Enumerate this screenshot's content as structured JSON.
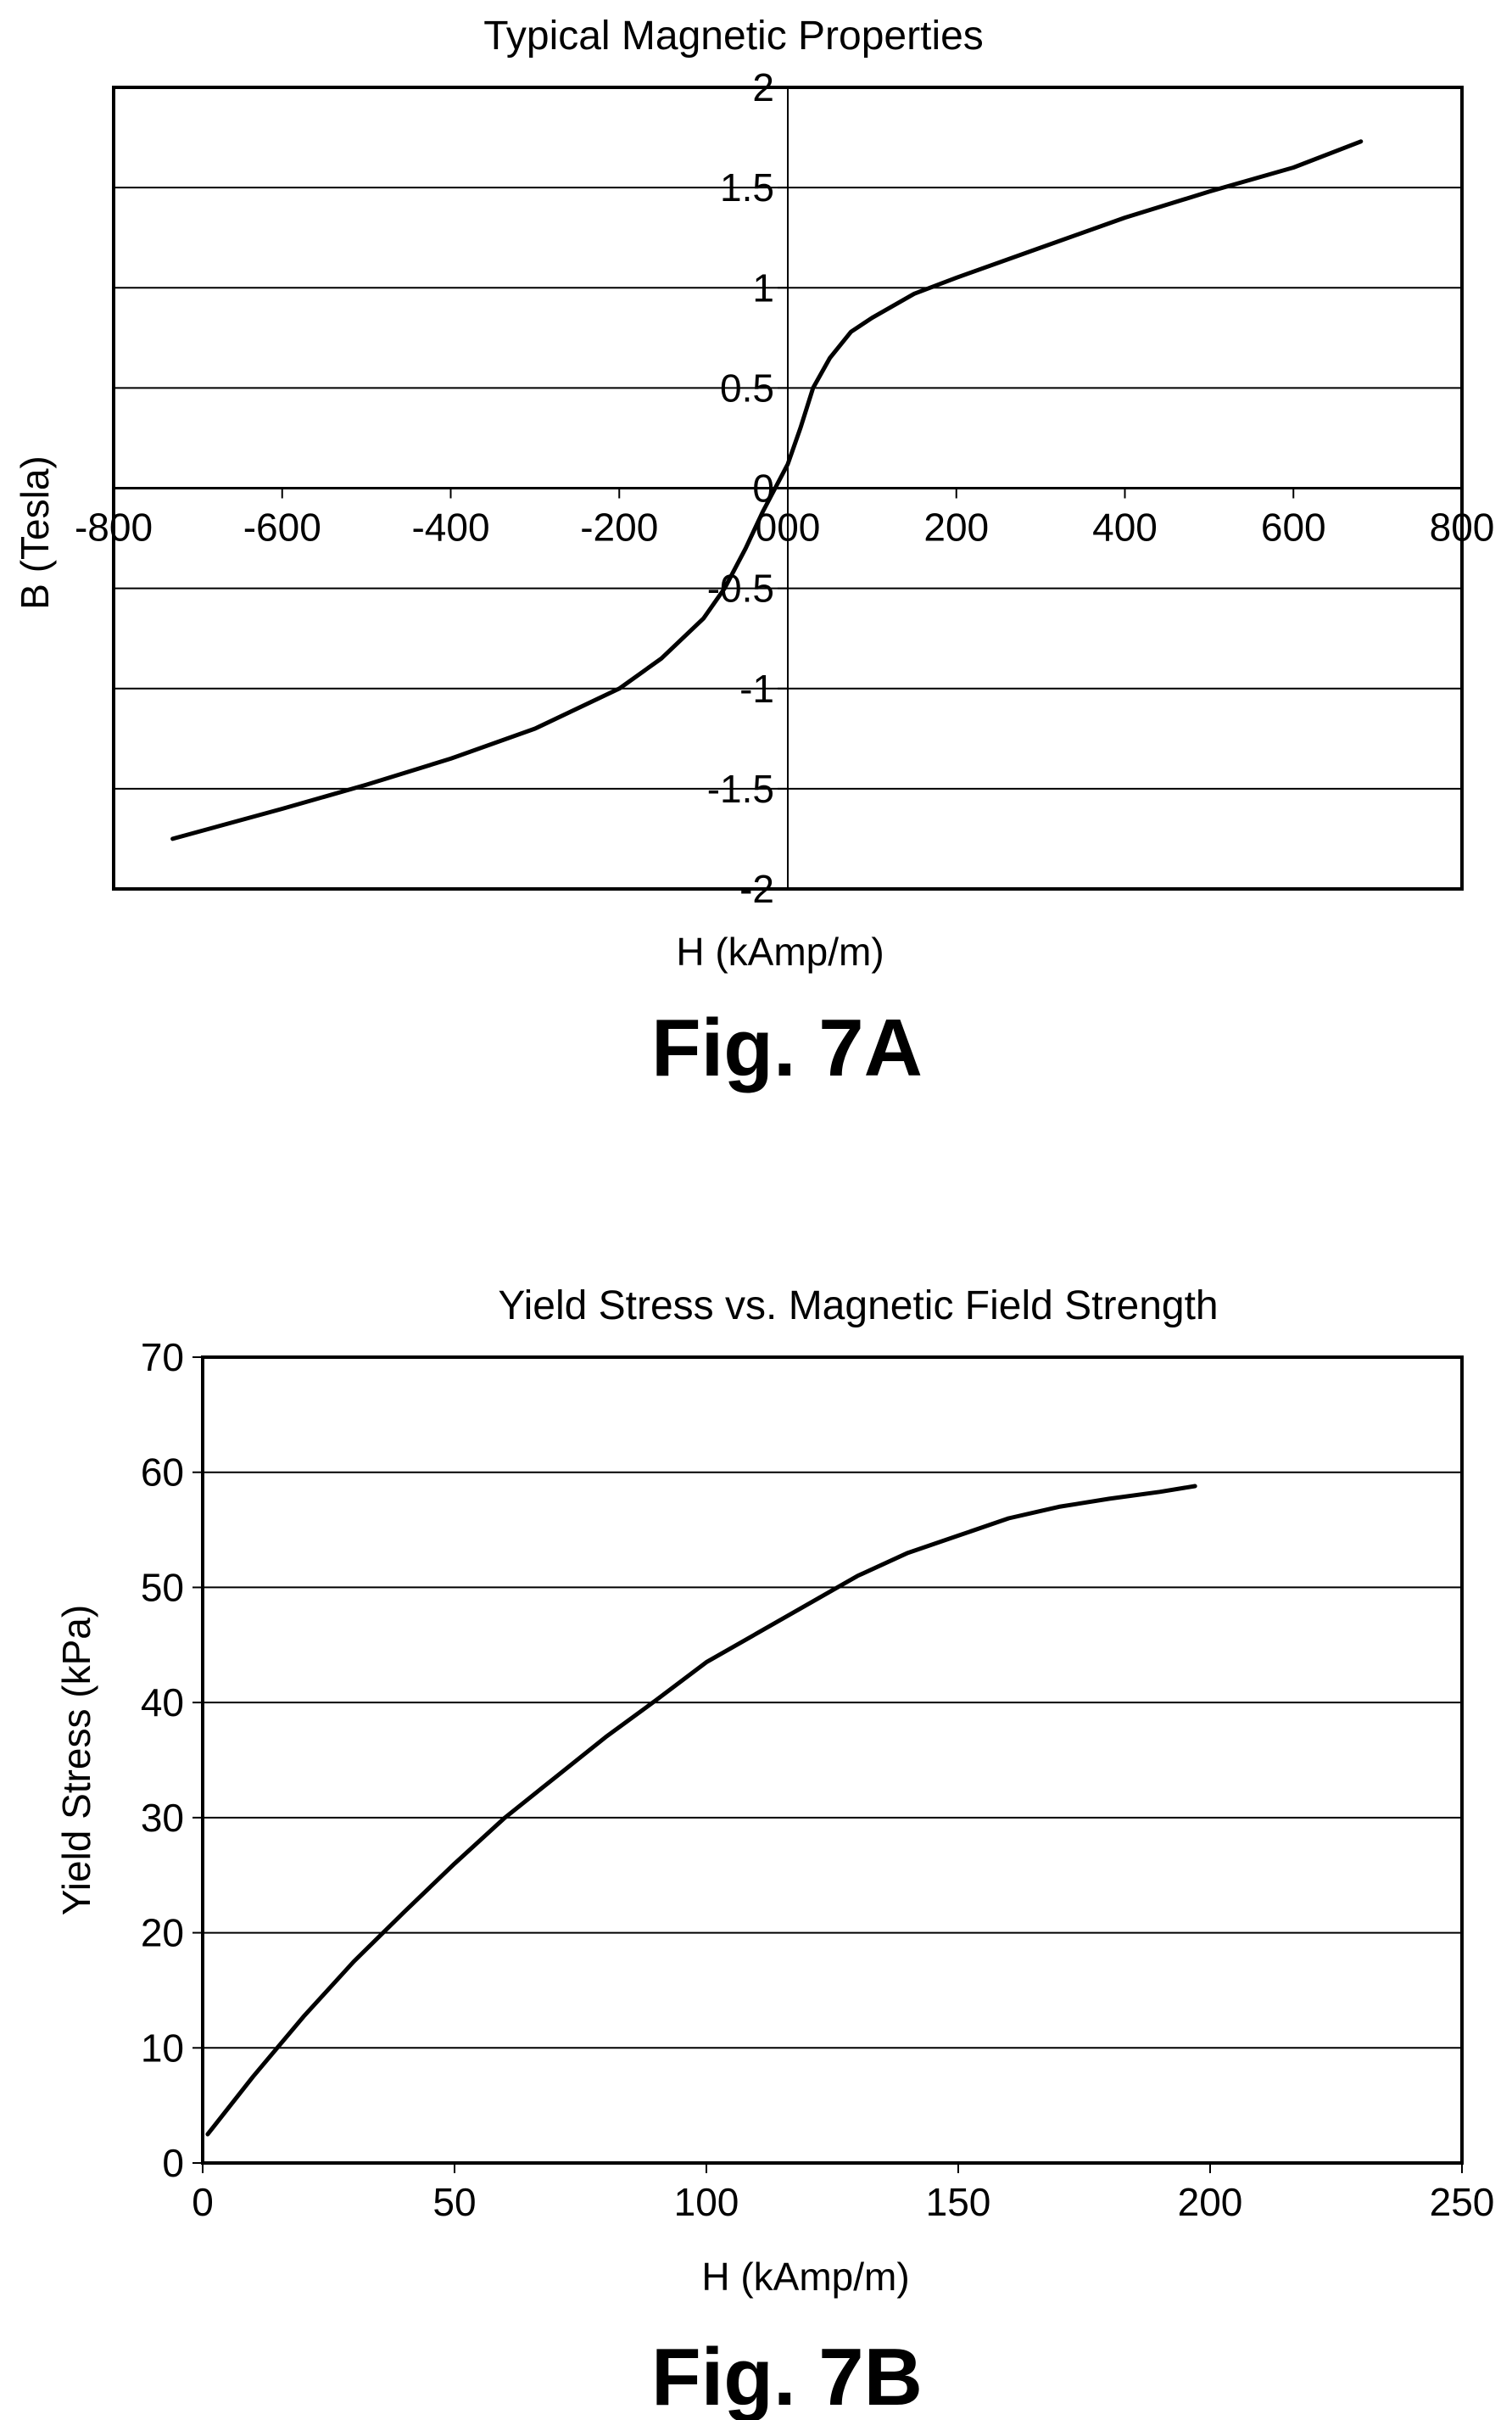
{
  "chart_data": [
    {
      "type": "line",
      "title": "Typical Magnetic Properties",
      "xlabel": "H (kAmp/m)",
      "ylabel": "B (Tesla)",
      "caption": "Fig. 7A",
      "xlim": [
        -800,
        800
      ],
      "ylim": [
        -2,
        2
      ],
      "xticks": [
        -800,
        -600,
        -400,
        -200,
        0,
        200,
        400,
        600,
        800
      ],
      "xtick_labels": [
        "-800",
        "-600",
        "-400",
        "-200",
        "000",
        "200",
        "400",
        "600",
        "800"
      ],
      "yticks": [
        -2,
        -1.5,
        -1,
        -0.5,
        0,
        0.5,
        1,
        1.5,
        2
      ],
      "ytick_labels": [
        "-2",
        "-1.5",
        "-1",
        "-0.5",
        "0",
        "0.5",
        "1",
        "1.5",
        "2"
      ],
      "grid": "horizontal",
      "axes_cross_at_origin": true,
      "series": [
        {
          "x": [
            -730,
            -600,
            -500,
            -400,
            -300,
            -200,
            -150,
            -100,
            -75,
            -50,
            -30,
            -15,
            0,
            15,
            30,
            50,
            75,
            100,
            150,
            200,
            300,
            400,
            500,
            600,
            680
          ],
          "y": [
            -1.75,
            -1.6,
            -1.48,
            -1.35,
            -1.2,
            -1.0,
            -0.85,
            -0.65,
            -0.5,
            -0.3,
            -0.12,
            0.0,
            0.12,
            0.3,
            0.5,
            0.65,
            0.78,
            0.85,
            0.97,
            1.05,
            1.2,
            1.35,
            1.48,
            1.6,
            1.73
          ]
        }
      ]
    },
    {
      "type": "line",
      "title": "Yield Stress vs. Magnetic Field Strength",
      "xlabel": "H (kAmp/m)",
      "ylabel": "Yield Stress (kPa)",
      "caption": "Fig. 7B",
      "xlim": [
        0,
        250
      ],
      "ylim": [
        0,
        70
      ],
      "xticks": [
        0,
        50,
        100,
        150,
        200,
        250
      ],
      "xtick_labels": [
        "0",
        "50",
        "100",
        "150",
        "200",
        "250"
      ],
      "yticks": [
        0,
        10,
        20,
        30,
        40,
        50,
        60,
        70
      ],
      "ytick_labels": [
        "0",
        "10",
        "20",
        "30",
        "40",
        "50",
        "60",
        "70"
      ],
      "grid": "horizontal",
      "series": [
        {
          "x": [
            1,
            10,
            20,
            30,
            40,
            50,
            60,
            70,
            80,
            90,
            100,
            110,
            120,
            130,
            140,
            150,
            160,
            170,
            180,
            190,
            197
          ],
          "y": [
            2.5,
            7.5,
            12.7,
            17.5,
            21.8,
            26,
            30,
            33.5,
            37,
            40.2,
            43.5,
            46,
            48.5,
            51,
            53,
            54.5,
            56,
            57,
            57.7,
            58.3,
            58.8
          ]
        }
      ]
    }
  ]
}
